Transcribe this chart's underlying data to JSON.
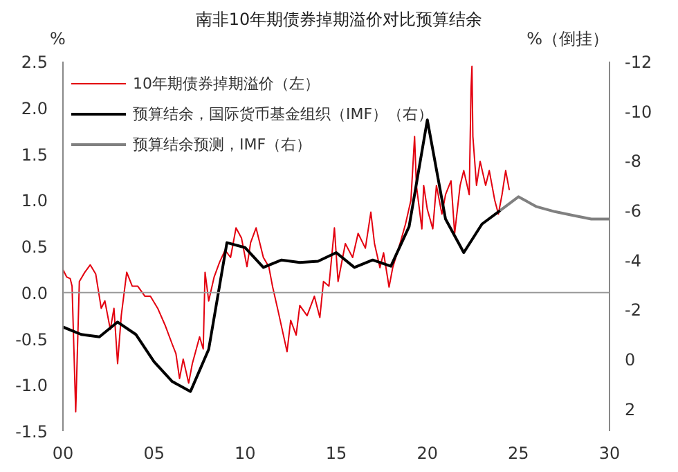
{
  "chart_data": {
    "type": "line",
    "title": "南非10年期债券掉期溢价对比预算结余",
    "ylabel": "%",
    "y2label": "%（倒挂）",
    "xlim": [
      2000,
      2030
    ],
    "xticks": [
      {
        "value": 2000,
        "label": "00"
      },
      {
        "value": 2005,
        "label": "05"
      },
      {
        "value": 2010,
        "label": "10"
      },
      {
        "value": 2015,
        "label": "15"
      },
      {
        "value": 2020,
        "label": "20"
      },
      {
        "value": 2025,
        "label": "25"
      },
      {
        "value": 2030,
        "label": "30"
      }
    ],
    "ylim": [
      -1.5,
      2.5
    ],
    "yticks": [
      -1.5,
      {
        "value": -1,
        "label": "-1.0"
      },
      -0.5,
      {
        "value": 0,
        "label": "0.0"
      },
      0.5,
      {
        "value": 1,
        "label": "1.0"
      },
      1.5,
      {
        "value": 2,
        "label": "2.0"
      },
      2.5
    ],
    "y2lim": [
      2.9,
      -12
    ],
    "y2ticks": [
      -12,
      -10,
      -8,
      -6,
      -4,
      -2,
      0,
      2
    ],
    "grid": false,
    "legend": "top left",
    "line_style": "solid",
    "ref_lines": [
      {
        "axis": "y",
        "value": 0,
        "label": null,
        "color": "#999999"
      }
    ],
    "series": [
      {
        "name": "10年期债券掉期溢价（左）",
        "color": "#e3000f",
        "x": [
          2000.0,
          2000.2,
          2000.4,
          2000.5,
          2000.7,
          2000.9,
          2001.2,
          2001.5,
          2001.8,
          2002.1,
          2002.3,
          2002.6,
          2002.8,
          2003.0,
          2003.2,
          2003.5,
          2003.8,
          2004.1,
          2004.5,
          2004.8,
          2005.2,
          2005.6,
          2006.0,
          2006.2,
          2006.4,
          2006.6,
          2006.9,
          2007.1,
          2007.5,
          2007.7,
          2007.8,
          2008.0,
          2008.3,
          2008.6,
          2008.9,
          2009.2,
          2009.5,
          2009.8,
          2010.1,
          2010.3,
          2010.6,
          2011.0,
          2011.3,
          2011.5,
          2011.8,
          2012.1,
          2012.3,
          2012.5,
          2012.8,
          2013.0,
          2013.4,
          2013.8,
          2014.1,
          2014.3,
          2014.6,
          2014.9,
          2015.1,
          2015.5,
          2015.9,
          2016.2,
          2016.6,
          2016.9,
          2017.1,
          2017.4,
          2017.6,
          2017.9,
          2018.1,
          2018.5,
          2018.8,
          2019.1,
          2019.3,
          2019.4,
          2019.7,
          2019.8,
          2020.0,
          2020.3,
          2020.5,
          2020.8,
          2021.0,
          2021.3,
          2021.5,
          2021.8,
          2022.0,
          2022.3,
          2022.4,
          2022.45,
          2022.5,
          2022.7,
          2022.9,
          2023.2,
          2023.4,
          2023.7,
          2023.9,
          2024.1,
          2024.3,
          2024.5
        ],
        "values": [
          0.25,
          0.17,
          0.15,
          0.07,
          -1.29,
          0.12,
          0.22,
          0.3,
          0.2,
          -0.17,
          -0.09,
          -0.4,
          -0.17,
          -0.77,
          -0.25,
          0.22,
          0.07,
          0.07,
          -0.04,
          -0.04,
          -0.17,
          -0.35,
          -0.56,
          -0.66,
          -0.93,
          -0.72,
          -0.98,
          -0.77,
          -0.48,
          -0.61,
          0.22,
          -0.09,
          0.17,
          0.33,
          0.46,
          0.38,
          0.7,
          0.59,
          0.28,
          0.54,
          0.7,
          0.38,
          0.28,
          0.07,
          -0.19,
          -0.46,
          -0.64,
          -0.3,
          -0.46,
          -0.14,
          -0.25,
          -0.04,
          -0.27,
          0.12,
          0.07,
          0.7,
          0.12,
          0.53,
          0.38,
          0.64,
          0.48,
          0.87,
          0.53,
          0.27,
          0.43,
          0.06,
          0.27,
          0.53,
          0.74,
          1.0,
          1.69,
          1.16,
          0.69,
          1.16,
          0.9,
          0.69,
          1.16,
          0.85,
          1.06,
          1.21,
          0.64,
          1.16,
          1.32,
          1.06,
          2.21,
          2.45,
          1.69,
          1.16,
          1.42,
          1.16,
          1.32,
          1.0,
          0.85,
          1.06,
          1.32,
          1.11
        ]
      },
      {
        "name": "预算结余，国际货币基金组织（IMF）（右）",
        "color": "#000000",
        "axis": "y2",
        "x": [
          2000,
          2001,
          2002,
          2003,
          2004,
          2005,
          2006,
          2007,
          2008,
          2009,
          2010,
          2011,
          2012,
          2013,
          2014,
          2015,
          2016,
          2017,
          2018,
          2019,
          2020,
          2021,
          2022,
          2023,
          2024
        ],
        "values": [
          -1.3,
          -1.0,
          -0.9,
          -1.5,
          -1.0,
          0.1,
          0.9,
          1.3,
          -0.4,
          -4.7,
          -4.5,
          -3.7,
          -4.0,
          -3.9,
          -3.95,
          -4.3,
          -3.7,
          -4.0,
          -3.75,
          -5.35,
          -9.65,
          -5.65,
          -4.3,
          -5.45,
          -6.0
        ]
      },
      {
        "name": "预算结余预测，IMF（右）",
        "color": "#808080",
        "axis": "y2",
        "x": [
          2024,
          2025,
          2026,
          2027,
          2028,
          2029,
          2030
        ],
        "values": [
          -6.0,
          -6.55,
          -6.15,
          -5.95,
          -5.8,
          -5.65,
          -5.65
        ]
      }
    ]
  }
}
